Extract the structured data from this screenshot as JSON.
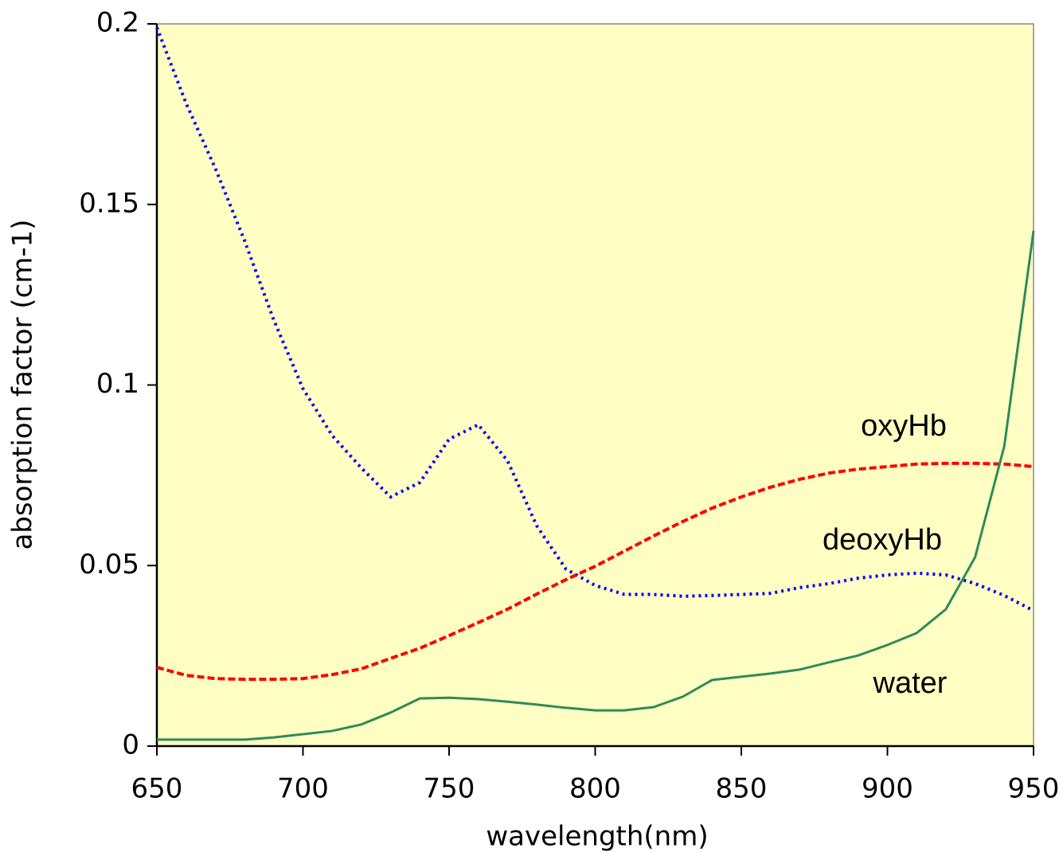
{
  "chart_data": {
    "type": "line",
    "x_label": "wavelength(nm)",
    "y_label": "absorption factor (cm-1)",
    "x": [
      650,
      660,
      670,
      680,
      690,
      700,
      710,
      720,
      730,
      740,
      750,
      760,
      770,
      780,
      790,
      800,
      810,
      820,
      830,
      840,
      850,
      860,
      870,
      880,
      890,
      900,
      910,
      920,
      930,
      940,
      950
    ],
    "series": [
      {
        "name": "deoxyHb",
        "color": "#0000ff",
        "style": "dotted",
        "values": [
          0.199,
          0.178,
          0.16,
          0.14,
          0.118,
          0.099,
          0.086,
          0.077,
          0.069,
          0.073,
          0.085,
          0.089,
          0.079,
          0.061,
          0.049,
          0.0445,
          0.042,
          0.042,
          0.0415,
          0.0417,
          0.042,
          0.0423,
          0.0439,
          0.045,
          0.0465,
          0.0474,
          0.0479,
          0.0474,
          0.045,
          0.0417,
          0.0375
        ]
      },
      {
        "name": "oxyHb",
        "color": "#ff0000",
        "style": "dashed",
        "values": [
          0.0218,
          0.0196,
          0.0187,
          0.0185,
          0.0185,
          0.0187,
          0.0198,
          0.0214,
          0.0243,
          0.0271,
          0.0306,
          0.0342,
          0.0379,
          0.0421,
          0.0461,
          0.0498,
          0.054,
          0.0582,
          0.0622,
          0.0659,
          0.069,
          0.0717,
          0.0739,
          0.0756,
          0.0767,
          0.0774,
          0.0781,
          0.0783,
          0.0783,
          0.0781,
          0.0774
        ]
      },
      {
        "name": "water",
        "color": "#2e8b57",
        "style": "solid",
        "values": [
          0.0018,
          0.0018,
          0.0018,
          0.0018,
          0.0024,
          0.0033,
          0.0042,
          0.006,
          0.0093,
          0.0132,
          0.0134,
          0.013,
          0.0123,
          0.0115,
          0.0106,
          0.0099,
          0.0099,
          0.0108,
          0.0137,
          0.0183,
          0.0192,
          0.0201,
          0.0212,
          0.0232,
          0.0251,
          0.028,
          0.0313,
          0.0379,
          0.0523,
          0.0831,
          0.1427
        ]
      }
    ],
    "xlim": [
      650,
      950
    ],
    "xticks": [
      650,
      700,
      750,
      800,
      850,
      900,
      950
    ],
    "ylim": [
      0,
      0.2
    ],
    "yticks": [
      0,
      0.05,
      0.1,
      0.15,
      0.2
    ],
    "background": "#ffffc4"
  }
}
